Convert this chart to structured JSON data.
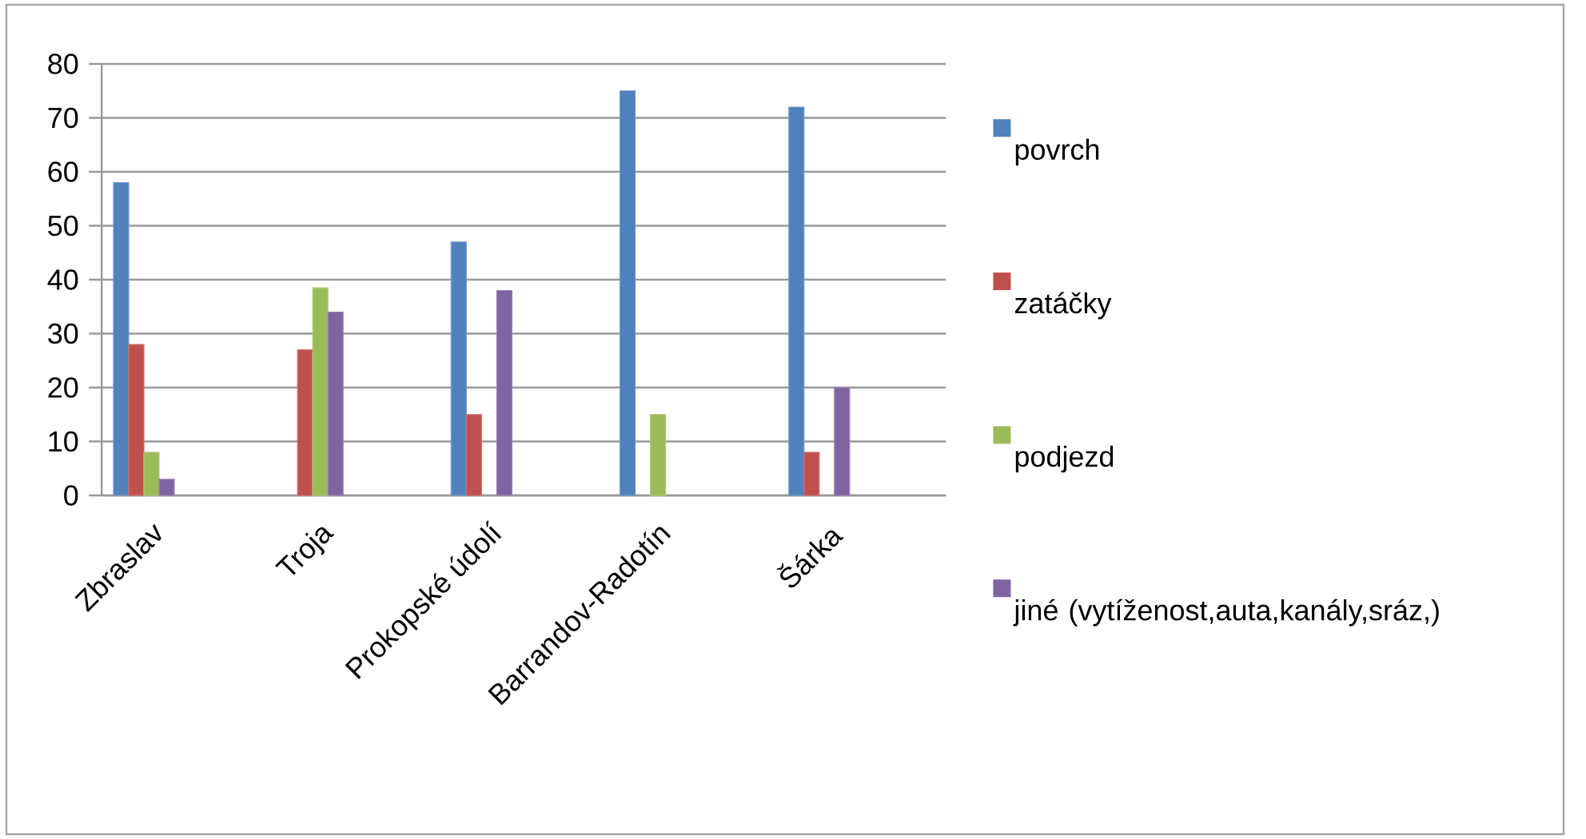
{
  "chart_data": {
    "type": "bar",
    "categories": [
      "Zbraslav",
      null,
      "Troja",
      null,
      "Prokopské údolí",
      null,
      "Barrandov-Radotín",
      null,
      "Šárka",
      null
    ],
    "series": [
      {
        "name": "povrch",
        "color": "#4f81bd",
        "values": [
          58,
          null,
          null,
          null,
          47,
          null,
          75,
          null,
          72,
          null
        ]
      },
      {
        "name": "zatáčky",
        "color": "#c0504d",
        "values": [
          28,
          null,
          27,
          null,
          15,
          null,
          null,
          null,
          8,
          null
        ]
      },
      {
        "name": "podjezd",
        "color": "#9bbb59",
        "values": [
          8,
          null,
          38.5,
          null,
          null,
          null,
          15,
          null,
          null,
          null
        ]
      },
      {
        "name": "jiné (vytíženost,auta,kanály,sráz,)",
        "color": "#8064a2",
        "values": [
          3,
          null,
          34,
          null,
          38,
          null,
          null,
          null,
          20,
          null
        ]
      }
    ],
    "ylim": [
      0,
      80
    ],
    "yticks": [
      0,
      10,
      20,
      30,
      40,
      50,
      60,
      70,
      80
    ],
    "grid": "y",
    "legend": "right"
  }
}
